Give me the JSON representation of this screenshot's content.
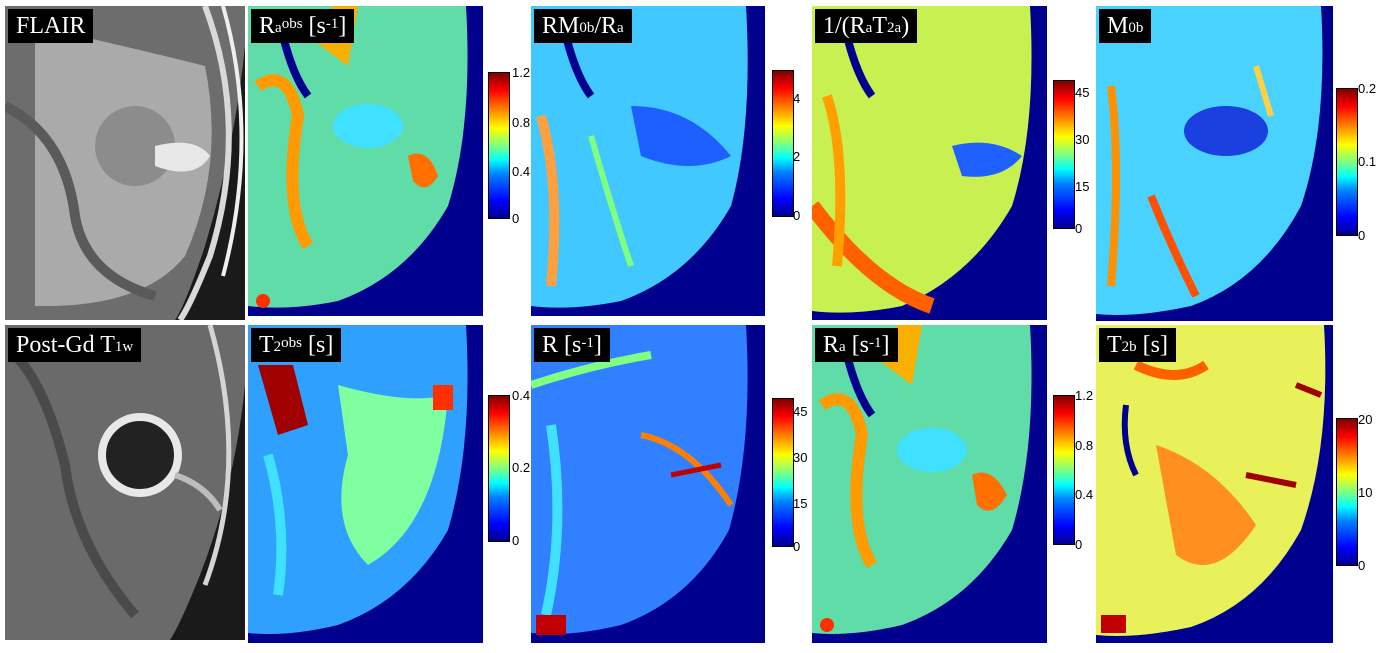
{
  "figure": {
    "panels": [
      {
        "id": "flair",
        "label": "FLAIR",
        "kind": "grayscale"
      },
      {
        "id": "ra-obs",
        "label": "Ra^obs [s^-1]",
        "colorbar": {
          "ticks": [
            "1.2",
            "0.8",
            "0.4",
            "0"
          ]
        }
      },
      {
        "id": "rm0b-ra",
        "label": "RM0b/Ra",
        "colorbar": {
          "ticks": [
            "4",
            "2",
            "0"
          ]
        }
      },
      {
        "id": "inv-rat2a",
        "label": "1/(RaT2a)",
        "colorbar": {
          "ticks": [
            "45",
            "30",
            "15",
            "0"
          ]
        }
      },
      {
        "id": "m0b",
        "label": "M0b",
        "colorbar": {
          "ticks": [
            "0.2",
            "0.1",
            "0"
          ]
        }
      },
      {
        "id": "post-gd",
        "label": "Post-Gd T1w",
        "kind": "grayscale"
      },
      {
        "id": "t2-obs",
        "label": "T2^obs [s]",
        "colorbar": {
          "ticks": [
            "0.4",
            "0.2",
            "0"
          ]
        }
      },
      {
        "id": "r",
        "label": "R [s^-1]",
        "colorbar": {
          "ticks": [
            "45",
            "30",
            "15",
            "0"
          ]
        }
      },
      {
        "id": "ra",
        "label": "Ra [s^-1]",
        "colorbar": {
          "ticks": [
            "1.2",
            "0.8",
            "0.4",
            "0"
          ]
        }
      },
      {
        "id": "t2b",
        "label": "T2b [s]",
        "colorbar": {
          "ticks": [
            "20",
            "10",
            "0"
          ]
        }
      }
    ],
    "labels": {
      "flair": {
        "text": "FLAIR"
      },
      "ra_obs": {
        "base": "R",
        "sub": "a",
        "sup": "obs",
        "unit_pre": " [s",
        "unit_sup": "-1",
        "unit_post": "]"
      },
      "rm0b": {
        "a": "RM",
        "a_sub": "0b",
        "b": "/R",
        "b_sub": "a"
      },
      "inv": {
        "a": "1/(R",
        "a_sub": "a",
        "b": "T",
        "b_sub": "2a",
        "c": ")"
      },
      "m0b": {
        "a": "M",
        "a_sub": "0b"
      },
      "postgd": {
        "a": "Post-Gd T",
        "a_sub": "1w"
      },
      "t2obs": {
        "a": "T",
        "a_sub": "2",
        "a_sup": "obs",
        "b": " [s]"
      },
      "r": {
        "a": "R [s",
        "a_sup": "-1",
        "b": "]"
      },
      "ra": {
        "a": "R",
        "a_sub": "a",
        "b": " [s",
        "b_sup": "-1",
        "c": "]"
      },
      "t2b": {
        "a": "T",
        "a_sub": "2b",
        "b": " [s]"
      }
    },
    "colors": {
      "background_blue": "#00008f",
      "label_bg": "#000000",
      "label_fg": "#ffffff"
    }
  }
}
